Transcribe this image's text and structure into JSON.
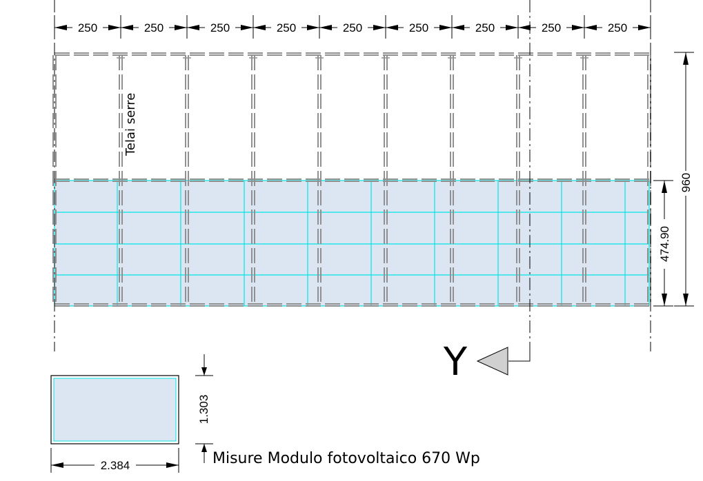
{
  "top_dimensions": [
    "250",
    "250",
    "250",
    "250",
    "250",
    "250",
    "250",
    "250",
    "250"
  ],
  "frame_label": "Telai serre",
  "height_total": "960",
  "height_pv": "474.90",
  "section_marker": "Y",
  "module": {
    "height": "1.303",
    "width": "2.384",
    "caption": "Misure Modulo fotovoltaico 670 Wp"
  },
  "colors": {
    "pv_fill": "#dce6f2",
    "pv_grid": "#00e5e5",
    "frame": "#909090",
    "line": "#000000",
    "arrow_fill": "#d0d0d0"
  }
}
